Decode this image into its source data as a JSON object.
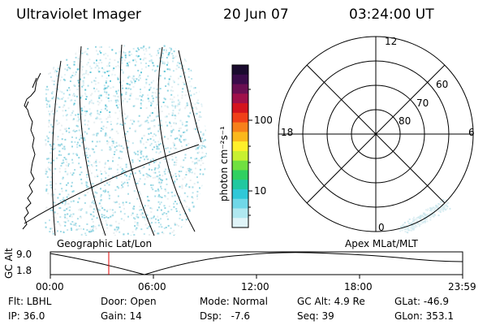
{
  "header": {
    "title": "Ultraviolet Imager",
    "date": "20 Jun 07",
    "time": "03:24:00 UT"
  },
  "colorbar": {
    "label": "photon cm⁻²s⁻¹",
    "ticks": [
      "100",
      "10"
    ],
    "colors": [
      "#1a0b2e",
      "#3a0c4a",
      "#6a0f52",
      "#a0104a",
      "#d4141e",
      "#f04018",
      "#f7801a",
      "#fbb81c",
      "#fff02a",
      "#c8f030",
      "#70e040",
      "#30d060",
      "#20c8a0",
      "#30c8d8",
      "#70d8e8",
      "#b0e8f0",
      "#e0f4f8"
    ]
  },
  "polar_plot": {
    "mlt_labels": {
      "top": "12",
      "right": "6",
      "bottom": "0",
      "left": "18"
    },
    "lat_labels": [
      "60",
      "70",
      "80"
    ]
  },
  "timeline": {
    "axis_label": "GC Alt",
    "y_ticks": [
      "9.0",
      "1.8"
    ],
    "left_caption": "Geographic Lat/Lon",
    "right_caption": "Apex MLat/MLT",
    "x_ticks": [
      "00:00",
      "06:00",
      "12:00",
      "18:00",
      "23:59"
    ],
    "current_time_fraction": 0.1417,
    "marker_color": "#e00000"
  },
  "status": {
    "flt_label": "Flt:",
    "flt": "LBHL",
    "ip_label": "IP:",
    "ip": "36.0",
    "door_label": "Door:",
    "door": "Open",
    "gain_label": "Gain:",
    "gain": "14",
    "mode_label": "Mode:",
    "mode": "Normal",
    "dsp_label": "Dsp:",
    "dsp": "-7.6",
    "gcalt_label": "GC Alt:",
    "gcalt": "4.9 Re",
    "seq_label": "Seq:",
    "seq": "39",
    "glat_label": "GLat:",
    "glat": "-46.9",
    "glon_label": "GLon:",
    "glon": "353.1"
  }
}
